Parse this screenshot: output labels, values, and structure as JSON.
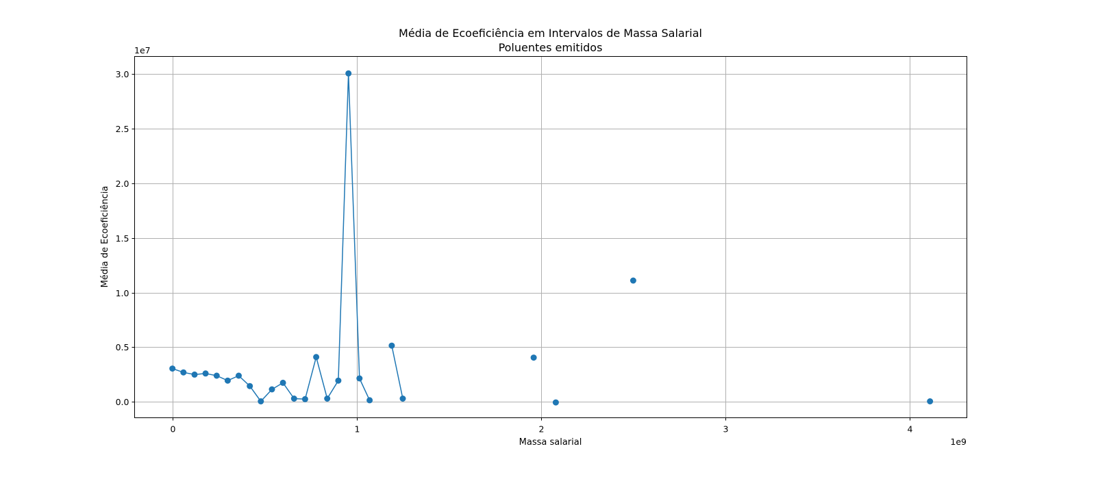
{
  "chart_data": {
    "type": "line",
    "title": "Média de Ecoeficiência em Intervalos de Massa Salarial",
    "subtitle": "Poluentes emitidos",
    "xlabel": "Massa salarial",
    "ylabel": "Média de Ecoeficiência",
    "x_offset_label": "1e9",
    "y_offset_label": "1e7",
    "xlim": [
      -0.205,
      4.31
    ],
    "ylim": [
      -1.45,
      31.6
    ],
    "x_scale": "×1e9",
    "y_scale": "×1e7",
    "x_ticks": [
      0,
      1,
      2,
      3,
      4
    ],
    "x_tick_labels": [
      "0",
      "1",
      "2",
      "3",
      "4"
    ],
    "y_ticks": [
      0,
      5,
      10,
      15,
      20,
      25,
      30
    ],
    "y_tick_labels": [
      "0.0",
      "0.5",
      "1.0",
      "1.5",
      "2.0",
      "2.5",
      "3.0"
    ],
    "grid": true,
    "color": "#1f77b4",
    "series": [
      {
        "segments": [
          [
            [
              0.0,
              3.05
            ],
            [
              0.06,
              2.7
            ],
            [
              0.12,
              2.5
            ],
            [
              0.18,
              2.6
            ],
            [
              0.24,
              2.4
            ],
            [
              0.3,
              1.95
            ],
            [
              0.36,
              2.4
            ],
            [
              0.42,
              1.45
            ],
            [
              0.48,
              0.05
            ],
            [
              0.54,
              1.15
            ],
            [
              0.6,
              1.75
            ],
            [
              0.66,
              0.3
            ],
            [
              0.72,
              0.25
            ],
            [
              0.78,
              4.1
            ],
            [
              0.84,
              0.3
            ],
            [
              0.9,
              1.95
            ],
            [
              0.955,
              30.05
            ],
            [
              1.015,
              2.15
            ],
            [
              1.07,
              0.15
            ]
          ],
          [
            [
              1.19,
              5.15
            ],
            [
              1.25,
              0.3
            ]
          ],
          [
            [
              1.96,
              4.05
            ]
          ],
          [
            [
              2.08,
              -0.05
            ]
          ],
          [
            [
              2.5,
              11.1
            ]
          ],
          [
            [
              4.11,
              0.05
            ]
          ]
        ]
      }
    ]
  }
}
